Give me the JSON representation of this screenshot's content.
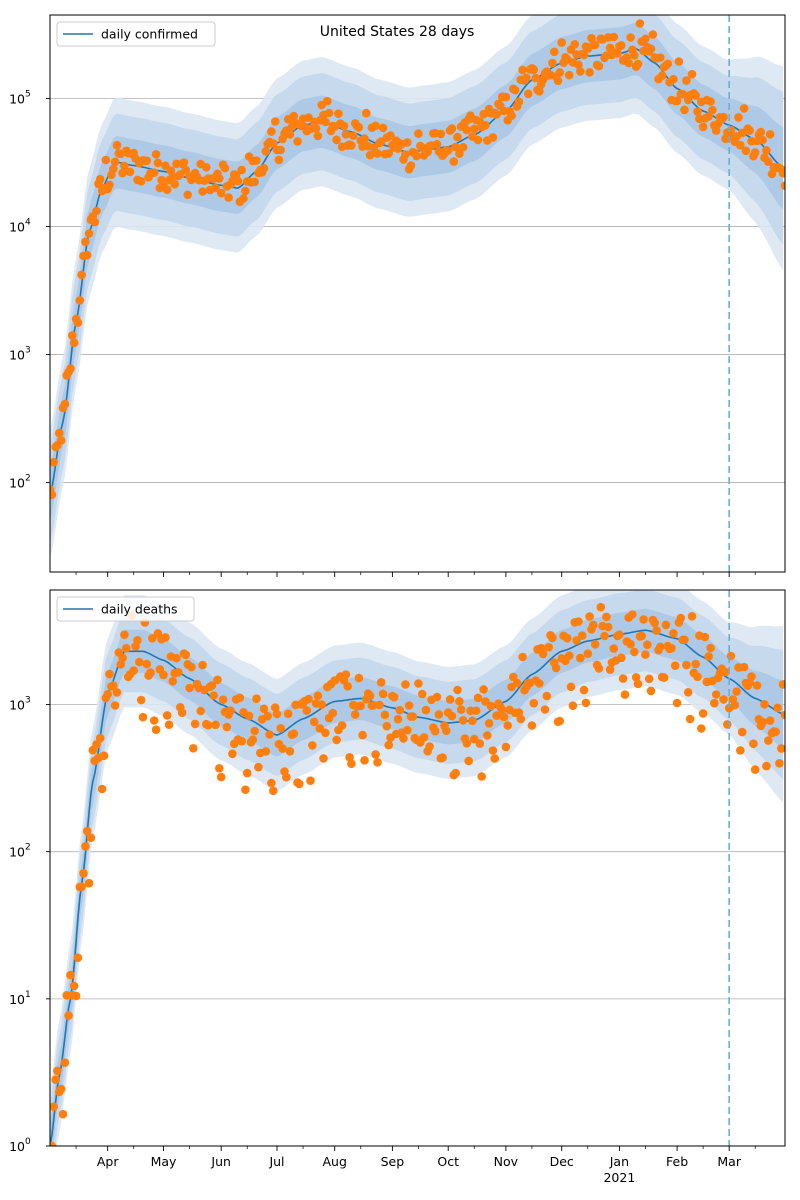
{
  "figure": {
    "title": "United States 28 days"
  },
  "colors": {
    "line": "#1f77b4",
    "dots": "#ff7f0e",
    "band_outer": "#dbe7f3",
    "band_mid": "#c3d7ec",
    "band_inner": "#aac7e3",
    "grid": "#b0b0b0",
    "vline": "#6aaed6"
  },
  "chart_data": [
    {
      "type": "line",
      "name": "confirmed",
      "legend": "daily confirmed",
      "legend_position": "upper-left",
      "y_scale": "log",
      "ylim": [
        20,
        450000
      ],
      "xlim": [
        "2020-03-01",
        "2021-03-31"
      ],
      "yticks": [
        {
          "value": 100,
          "base": "10",
          "exp": "2"
        },
        {
          "value": 1000,
          "base": "10",
          "exp": "3"
        },
        {
          "value": 10000,
          "base": "10",
          "exp": "4"
        },
        {
          "value": 100000,
          "base": "10",
          "exp": "5"
        }
      ],
      "grid": "horizontal",
      "vline_date": "2021-03-01",
      "trend_knots": [
        [
          "2020-03-01",
          80
        ],
        [
          "2020-03-08",
          300
        ],
        [
          "2020-03-15",
          1800
        ],
        [
          "2020-03-22",
          9000
        ],
        [
          "2020-03-29",
          20000
        ],
        [
          "2020-04-05",
          32000
        ],
        [
          "2020-04-15",
          30000
        ],
        [
          "2020-05-01",
          27000
        ],
        [
          "2020-05-15",
          24000
        ],
        [
          "2020-06-01",
          21000
        ],
        [
          "2020-06-10",
          20000
        ],
        [
          "2020-06-20",
          27000
        ],
        [
          "2020-07-01",
          45000
        ],
        [
          "2020-07-15",
          62000
        ],
        [
          "2020-07-25",
          66000
        ],
        [
          "2020-08-10",
          55000
        ],
        [
          "2020-08-25",
          44000
        ],
        [
          "2020-09-10",
          38000
        ],
        [
          "2020-09-20",
          40000
        ],
        [
          "2020-10-01",
          42000
        ],
        [
          "2020-10-15",
          52000
        ],
        [
          "2020-11-01",
          80000
        ],
        [
          "2020-11-15",
          140000
        ],
        [
          "2020-12-01",
          190000
        ],
        [
          "2020-12-15",
          215000
        ],
        [
          "2021-01-01",
          225000
        ],
        [
          "2021-01-10",
          245000
        ],
        [
          "2021-01-20",
          190000
        ],
        [
          "2021-02-01",
          120000
        ],
        [
          "2021-02-15",
          80000
        ],
        [
          "2021-03-01",
          62000
        ],
        [
          "2021-03-15",
          48000
        ],
        [
          "2021-03-31",
          28000
        ]
      ],
      "band_factors": [
        1.6,
        2.4,
        3.2
      ],
      "scatter_spread": 0.28
    },
    {
      "type": "line",
      "name": "deaths",
      "legend": "daily deaths",
      "legend_position": "upper-left",
      "y_scale": "log",
      "ylim": [
        1,
        6000
      ],
      "xlim": [
        "2020-03-01",
        "2021-03-31"
      ],
      "yticks": [
        {
          "value": 1,
          "base": "10",
          "exp": "0"
        },
        {
          "value": 10,
          "base": "10",
          "exp": "1"
        },
        {
          "value": 100,
          "base": "10",
          "exp": "2"
        },
        {
          "value": 1000,
          "base": "10",
          "exp": "3"
        }
      ],
      "grid": "horizontal",
      "vline_date": "2021-03-01",
      "trend_knots": [
        [
          "2020-03-01",
          1
        ],
        [
          "2020-03-06",
          3
        ],
        [
          "2020-03-12",
          10
        ],
        [
          "2020-03-18",
          60
        ],
        [
          "2020-03-24",
          300
        ],
        [
          "2020-04-01",
          1200
        ],
        [
          "2020-04-10",
          2300
        ],
        [
          "2020-04-20",
          2300
        ],
        [
          "2020-05-01",
          2000
        ],
        [
          "2020-05-15",
          1500
        ],
        [
          "2020-06-01",
          1000
        ],
        [
          "2020-06-15",
          800
        ],
        [
          "2020-07-01",
          620
        ],
        [
          "2020-07-15",
          800
        ],
        [
          "2020-08-01",
          1050
        ],
        [
          "2020-08-15",
          1100
        ],
        [
          "2020-09-01",
          950
        ],
        [
          "2020-09-15",
          820
        ],
        [
          "2020-10-01",
          750
        ],
        [
          "2020-10-15",
          780
        ],
        [
          "2020-11-01",
          1050
        ],
        [
          "2020-11-15",
          1600
        ],
        [
          "2020-12-01",
          2300
        ],
        [
          "2020-12-15",
          2700
        ],
        [
          "2021-01-01",
          3000
        ],
        [
          "2021-01-15",
          3200
        ],
        [
          "2021-02-01",
          2800
        ],
        [
          "2021-02-15",
          2100
        ],
        [
          "2021-03-01",
          1500
        ],
        [
          "2021-03-15",
          1100
        ],
        [
          "2021-03-31",
          850
        ]
      ],
      "band_factors": [
        1.4,
        1.9,
        2.4
      ],
      "scatter_spread": 0.35
    }
  ],
  "x_axis": {
    "ticks": [
      {
        "date": "2020-04-01",
        "label": "Apr"
      },
      {
        "date": "2020-05-01",
        "label": "May"
      },
      {
        "date": "2020-06-01",
        "label": "Jun"
      },
      {
        "date": "2020-07-01",
        "label": "Jul"
      },
      {
        "date": "2020-08-01",
        "label": "Aug"
      },
      {
        "date": "2020-09-01",
        "label": "Sep"
      },
      {
        "date": "2020-10-01",
        "label": "Oct"
      },
      {
        "date": "2020-11-01",
        "label": "Nov"
      },
      {
        "date": "2020-12-01",
        "label": "Dec"
      },
      {
        "date": "2021-01-01",
        "label": "Jan"
      },
      {
        "date": "2021-02-01",
        "label": "Feb"
      },
      {
        "date": "2021-03-01",
        "label": "Mar"
      }
    ],
    "year_label": "2021",
    "year_label_date": "2021-01-01"
  }
}
